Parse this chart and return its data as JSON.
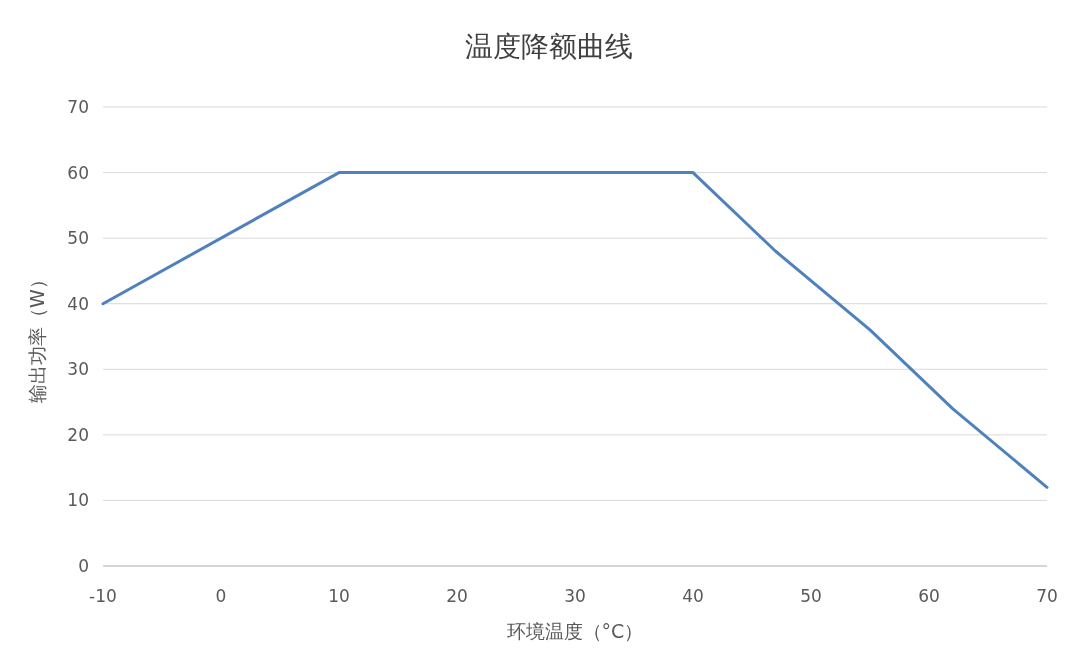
{
  "chart_data": {
    "type": "line",
    "title": "温度降额曲线",
    "xlabel": "环境温度（°C）",
    "ylabel": "输出功率（W）",
    "x": [
      -10,
      10,
      40,
      47,
      55,
      62,
      70
    ],
    "series": [
      {
        "color": "#4f81bd",
        "values": [
          40,
          60,
          60,
          48,
          36,
          24,
          12
        ]
      }
    ],
    "xlim": [
      -10,
      70
    ],
    "xticks": [
      -10,
      0,
      10,
      20,
      30,
      40,
      50,
      60,
      70
    ],
    "ylim": [
      0,
      70
    ],
    "yticks": [
      0,
      10,
      20,
      30,
      40,
      50,
      60,
      70
    ],
    "grid": "y",
    "marker": "none",
    "line_style": "solid"
  }
}
